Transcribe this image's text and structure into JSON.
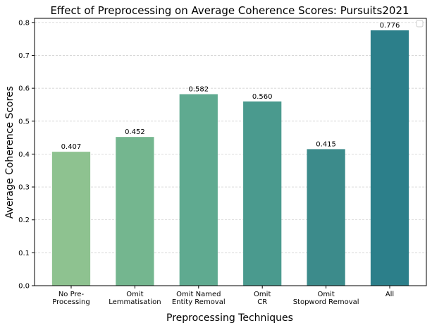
{
  "chart_data": {
    "type": "bar",
    "title": "Effect of Preprocessing on Average Coherence Scores: Pursuits2021",
    "xlabel": "Preprocessing Techniques",
    "ylabel": "Average Coherence Scores",
    "categories": [
      [
        "No Pre-",
        "Processing"
      ],
      [
        "Omit",
        "Lemmatisation"
      ],
      [
        "Omit Named",
        "Entity Removal"
      ],
      [
        "Omit",
        "CR"
      ],
      [
        "Omit",
        "Stopword Removal"
      ],
      [
        "All"
      ]
    ],
    "values": [
      0.407,
      0.452,
      0.582,
      0.56,
      0.415,
      0.776
    ],
    "value_labels": [
      "0.407",
      "0.452",
      "0.582",
      "0.560",
      "0.415",
      "0.776"
    ],
    "colors": [
      "#8ec290",
      "#74b68f",
      "#5faa90",
      "#4a9a8e",
      "#3c8b8b",
      "#2c7f8a"
    ],
    "yticks": [
      "0.0",
      "0.1",
      "0.2",
      "0.3",
      "0.4",
      "0.5",
      "0.6",
      "0.7",
      "0.8"
    ],
    "ylim": [
      0,
      0.8125
    ],
    "grid": "horizontal dashed",
    "legend": "top-right (empty)"
  }
}
